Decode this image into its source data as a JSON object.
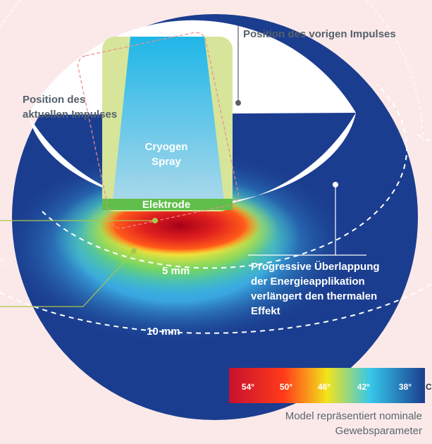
{
  "labels": {
    "previous_pulse": "Position des vorigen Impulses",
    "current_pulse": "Position des aktuellen Impulses",
    "cryogen": "Cryogen Spray",
    "electrode": "Elektrode",
    "depth_5": "5 mm",
    "depth_10": "10 mm",
    "progressive": "Progressive Überlappung der Energieapplikation verlängert den thermalen Effekt",
    "model_note": "Model repräsentiert nominale Gewebsparameter"
  },
  "scale": {
    "values": [
      "54°",
      "50°",
      "46°",
      "42°",
      "38°"
    ],
    "unit": "C",
    "colors": [
      "#c8102e",
      "#ff3b1a",
      "#f7e21a",
      "#4fd1e8",
      "#1b3d8f"
    ]
  },
  "colors": {
    "background": "#fbe9e9",
    "tissue_cool": "#1b3d8f",
    "cryogen_panel": "#d6e59a",
    "electrode_bar": "#5fbf4a",
    "callout_line": "#a8c84a",
    "grey_text": "#55606b"
  },
  "icons": {
    "pointer_dot": "filled-circle-marker"
  }
}
